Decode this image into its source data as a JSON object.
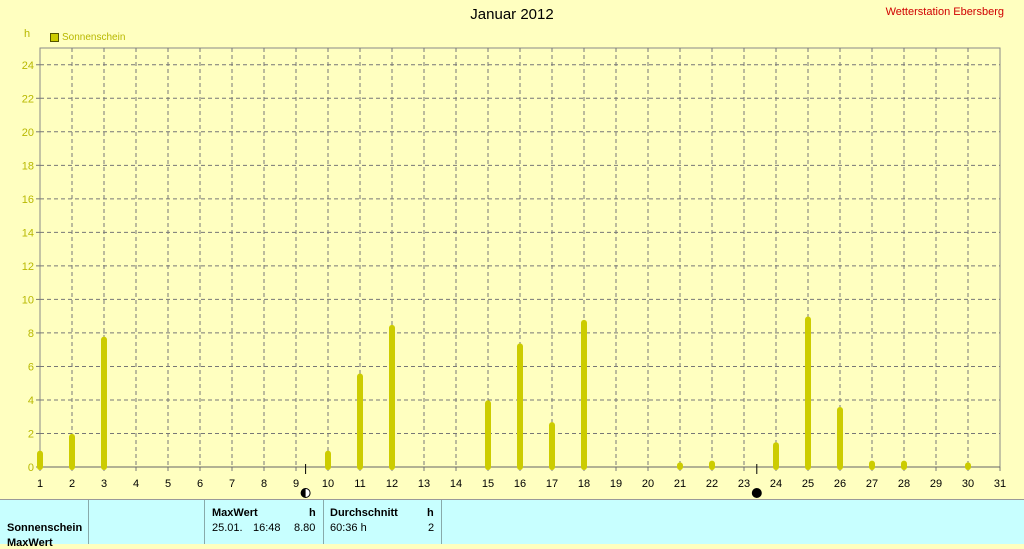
{
  "header": {
    "title": "Januar 2012",
    "station": "Wetterstation Ebersberg",
    "unit": "h"
  },
  "legend": {
    "label": "Sonnenschein",
    "color": "#cccc00"
  },
  "chart_data": {
    "type": "bar",
    "title": "Januar 2012",
    "ylabel": "h",
    "ylim": [
      0,
      25
    ],
    "yticks": [
      0,
      2,
      4,
      6,
      8,
      10,
      12,
      14,
      16,
      18,
      20,
      22,
      24
    ],
    "xlim": [
      1,
      31
    ],
    "grid": true,
    "legend_position": "top-left",
    "categories": [
      "1",
      "2",
      "3",
      "4",
      "5",
      "6",
      "7",
      "8",
      "9",
      "10",
      "11",
      "12",
      "13",
      "14",
      "15",
      "16",
      "17",
      "18",
      "19",
      "20",
      "21",
      "22",
      "23",
      "24",
      "25",
      "26",
      "27",
      "28",
      "29",
      "30",
      "31"
    ],
    "series": [
      {
        "name": "Sonnenschein",
        "color": "#cccc00",
        "values": [
          0.8,
          1.8,
          7.6,
          0,
          0,
          0,
          0,
          0,
          0,
          0.8,
          5.4,
          8.3,
          0,
          0,
          3.8,
          7.2,
          2.5,
          8.6,
          0,
          0,
          0.1,
          0.2,
          0,
          1.3,
          8.8,
          3.4,
          0.2,
          0.2,
          0,
          0.1,
          0
        ]
      }
    ],
    "moon_markers": [
      {
        "day": 9.3,
        "phase": "first-quarter"
      },
      {
        "day": 23.4,
        "phase": "new-moon"
      }
    ]
  },
  "stats": {
    "row_label": "Sonnenschein",
    "row2_label": "MaxWert",
    "max_header": "MaxWert",
    "max_unit": "h",
    "max_date": "25.01.",
    "max_time": "16:48",
    "max_value": "8.80",
    "avg_header": "Durchschnitt",
    "avg_unit": "h",
    "avg_value": "60:36 h",
    "avg_extra": "2"
  }
}
